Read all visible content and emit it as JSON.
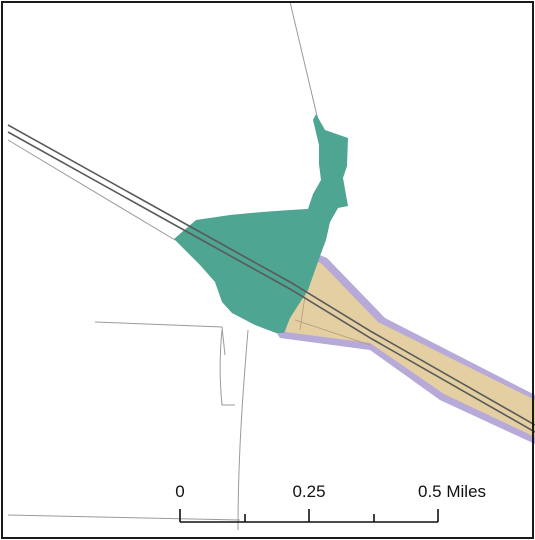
{
  "map": {
    "colors": {
      "frame": "#1a1a1a",
      "background": "#ffffff",
      "teal_area": "#4ea592",
      "tan_area": "#e3cfa1",
      "lavender_buffer": "#b7a9d8",
      "rail_line": "#5a5a5a",
      "minor_road": "#9a9a9a"
    },
    "scale_bar": {
      "labels": [
        "0",
        "0.25",
        "0.5 Miles"
      ],
      "units": "Miles"
    }
  }
}
